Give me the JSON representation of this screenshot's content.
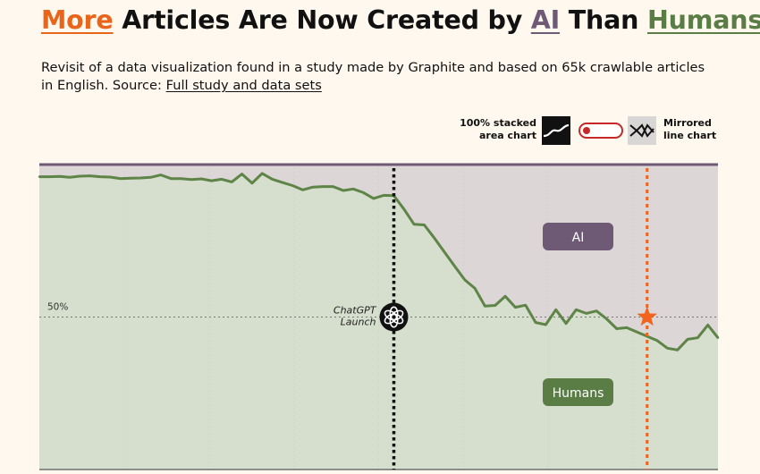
{
  "title": {
    "w1": "More",
    "w2": " Articles Are Now Created by ",
    "w3": "AI",
    "w4": " Than ",
    "w5": "Humans"
  },
  "subtitle": {
    "text": "Revisit of a data visualization found in a study made by Graphite and based on 65k crawlable articles in English. Source: ",
    "link": "Full study and data sets"
  },
  "toggle": {
    "left_label_1": "100% stacked",
    "left_label_2": "area chart",
    "right_label_1": "Mirrored",
    "right_label_2": "line chart",
    "state": "stacked"
  },
  "colors": {
    "more": "#e8651a",
    "ai": "#6f5a76",
    "humans": "#5a7d46",
    "ai_area": "#dcd6d7",
    "humans_area": "#d6decd",
    "line": "#5e8447",
    "star": "#f0641e"
  },
  "chart_data": {
    "type": "area",
    "stacked_percent": true,
    "ylim": [
      0,
      100
    ],
    "reference_line": {
      "value": 50,
      "label": "50%"
    },
    "series": [
      {
        "name": "Humans",
        "values": [
          96,
          96,
          96.1,
          95.8,
          96.2,
          96.3,
          96,
          95.9,
          95.4,
          95.5,
          95.6,
          95.8,
          96.6,
          95.4,
          95.4,
          95.1,
          95.3,
          94.7,
          95.2,
          94.3,
          96.9,
          93.9,
          97.1,
          95.2,
          94.1,
          93.1,
          91.7,
          92.6,
          92.8,
          92.8,
          91.5,
          92,
          90.8,
          88.9,
          89.9,
          89.8,
          85.4,
          80.4,
          80.2,
          75.9,
          71.3,
          66.7,
          62.2,
          59.4,
          53.6,
          53.8,
          56.8,
          53.2,
          53.9,
          48.2,
          47.5,
          52.4,
          47.9,
          52.4,
          51.2,
          52,
          49.4,
          46.2,
          46.5,
          45.1,
          43.7,
          42.3,
          39.8,
          39.2,
          42.7,
          43.2,
          47.4,
          43.2
        ]
      },
      {
        "name": "AI",
        "values": "complement"
      }
    ],
    "annotations": [
      {
        "type": "vline",
        "index": 35,
        "style": "black-dotted",
        "label_1": "ChatGPT",
        "label_2": "Launch",
        "icon": "openai-logo-icon"
      },
      {
        "type": "vline",
        "index": 60,
        "style": "orange-dotted",
        "marker": "star"
      }
    ],
    "labels": {
      "ai": "AI",
      "humans": "Humans"
    }
  }
}
